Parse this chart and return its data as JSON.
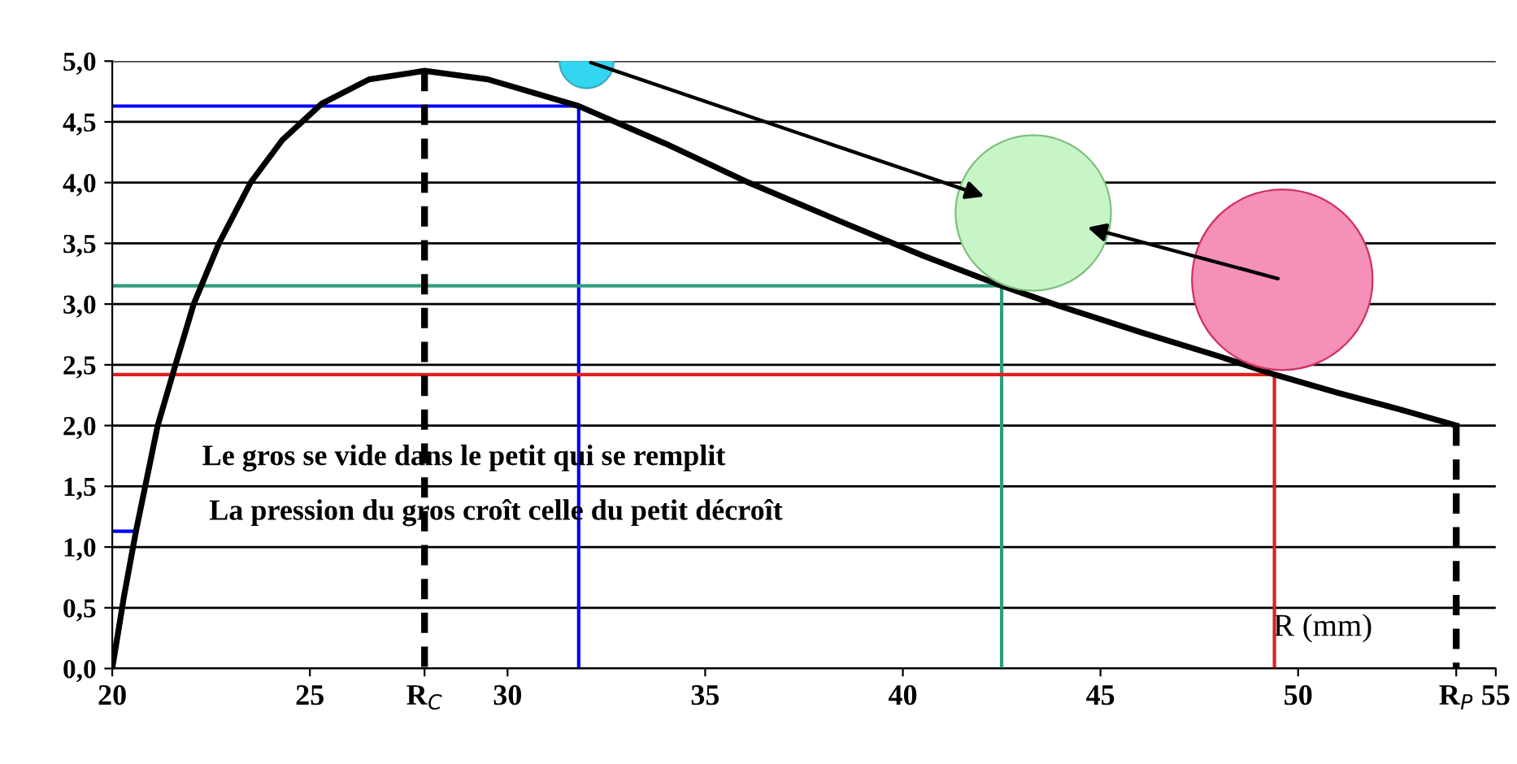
{
  "chart_data": {
    "type": "line",
    "xlabel": "R (mm)",
    "x": [
      20,
      20.3,
      20.6,
      21.15,
      21.6,
      22.06,
      22.7,
      23.5,
      24.3,
      25.3,
      26.5,
      27.9,
      29.5,
      31.8,
      34,
      36.1,
      38.5,
      40.5,
      42.5,
      44,
      46,
      48,
      49.4,
      51,
      52.5,
      54
    ],
    "series": [
      {
        "color": "#000000",
        "values": [
          0,
          0.6,
          1.13,
          2.0,
          2.5,
          3.0,
          3.5,
          4.0,
          4.35,
          4.65,
          4.85,
          4.92,
          4.85,
          4.63,
          4.32,
          4.0,
          3.67,
          3.4,
          3.15,
          2.98,
          2.77,
          2.57,
          2.42,
          2.27,
          2.14,
          2.0
        ]
      },
      {
        "color": "#0000ff",
        "x": [
          20,
          31.8,
          31.8
        ],
        "values": [
          4.63,
          4.63,
          0
        ]
      },
      {
        "color": "#0000ff",
        "x": [
          20,
          20.6
        ],
        "values": [
          1.13,
          1.13
        ]
      },
      {
        "color": "#2e9e7e",
        "x": [
          20,
          42.5,
          42.5
        ],
        "values": [
          3.15,
          3.15,
          0
        ]
      },
      {
        "color": "#e02020",
        "x": [
          20,
          49.4,
          49.4
        ],
        "values": [
          2.42,
          2.42,
          0
        ]
      },
      {
        "color": "#000000",
        "line_style": "dashed",
        "x": [
          27.9,
          27.9
        ],
        "values": [
          4.92,
          0
        ]
      },
      {
        "color": "#000000",
        "line_style": "dashed",
        "x": [
          54,
          54
        ],
        "values": [
          2.0,
          0
        ]
      },
      {
        "type": "bubble",
        "x": [
          32.0,
          43.3,
          49.6
        ],
        "values": [
          5.0,
          3.75,
          3.2
        ],
        "sizes": [
          0.09,
          0.74,
          1
        ],
        "colors": [
          "#33d6f0",
          "#c8f5c8",
          "#f590b8"
        ]
      }
    ],
    "xlim": [
      20,
      55
    ],
    "ylim": [
      0,
      5
    ],
    "xticks": [
      20,
      25,
      {
        "value": 27.9,
        "label": "R$_{C}$"
      },
      30,
      35,
      40,
      45,
      50,
      {
        "value": 54,
        "label": "R$_{P}$"
      },
      55
    ],
    "yticks": [
      {
        "value": 0,
        "label": "0,0"
      },
      {
        "value": 0.5,
        "label": "0,5"
      },
      {
        "value": 1,
        "label": "1,0"
      },
      {
        "value": 1.5,
        "label": "1,5"
      },
      {
        "value": 2,
        "label": "2,0"
      },
      {
        "value": 2.5,
        "label": "2,5"
      },
      {
        "value": 3,
        "label": "3,0"
      },
      {
        "value": 3.5,
        "label": "3,5"
      },
      {
        "value": 4,
        "label": "4,0"
      },
      {
        "value": 4.5,
        "label": "4,5"
      },
      {
        "value": 5,
        "label": "5,0"
      }
    ],
    "grid": "y",
    "annotations": [
      "Le gros se vide dans le petit qui se remplit",
      "La pression du gros croît celle du petit décroît"
    ]
  }
}
